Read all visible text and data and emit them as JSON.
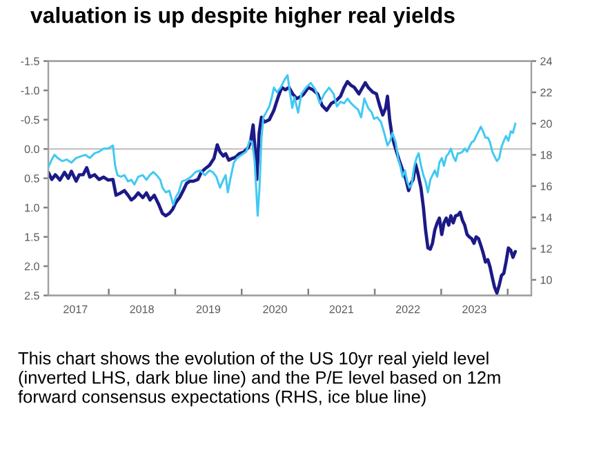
{
  "chart_data": {
    "type": "line",
    "title": "valuation is up despite higher real yields",
    "annotations": [
      "This chart shows the evolution of the US 10yr real yield level (inverted LHS, dark blue line) and the P/E level based on 12m forward consensus expectations (RHS, ice blue line)"
    ],
    "xlim": [
      "2017-02-03",
      "2024-05-10"
    ],
    "xticks": [
      {
        "value": "2017-07-02",
        "label": "2017"
      },
      {
        "value": "2018-01-01",
        "label": null
      },
      {
        "value": "2018-07-02",
        "label": "2018"
      },
      {
        "value": "2019-01-01",
        "label": null
      },
      {
        "value": "2019-07-02",
        "label": "2019"
      },
      {
        "value": "2020-01-01",
        "label": null
      },
      {
        "value": "2020-07-02",
        "label": "2020"
      },
      {
        "value": "2021-01-01",
        "label": null
      },
      {
        "value": "2021-07-02",
        "label": "2021"
      },
      {
        "value": "2022-01-01",
        "label": null
      },
      {
        "value": "2022-07-02",
        "label": "2022"
      },
      {
        "value": "2023-01-01",
        "label": null
      },
      {
        "value": "2023-07-02",
        "label": "2023"
      },
      {
        "value": "2024-01-01",
        "label": null
      }
    ],
    "ylim": [
      2.5,
      -1.5
    ],
    "yticks": [
      -1.5,
      {
        "value": -1,
        "label": "-1.0"
      },
      -0.5,
      {
        "value": 0,
        "label": "0.0"
      },
      0.5,
      {
        "value": 1,
        "label": "1.0"
      },
      1.5,
      {
        "value": 2,
        "label": "2.0"
      },
      2.5
    ],
    "y2lim": [
      9,
      24
    ],
    "y2ticks": [
      10,
      12,
      14,
      16,
      18,
      20,
      22,
      24
    ],
    "ref_lines": [
      {
        "axis": "y",
        "value": 0,
        "color": "#c4c4c4"
      }
    ],
    "series": [
      {
        "color": "#1c1a86",
        "x": [
          "2017-02-03",
          "2017-02-22",
          "2017-03-14",
          "2017-04-08",
          "2017-05-03",
          "2017-05-24",
          "2017-06-10",
          "2017-07-06",
          "2017-07-23",
          "2017-08-13",
          "2017-09-02",
          "2017-09-19",
          "2017-10-15",
          "2017-11-09",
          "2017-12-04",
          "2017-12-29",
          "2018-01-24",
          "2018-02-10",
          "2018-03-08",
          "2018-03-28",
          "2018-04-17",
          "2018-05-05",
          "2018-05-22",
          "2018-06-12",
          "2018-07-07",
          "2018-07-27",
          "2018-08-16",
          "2018-09-08",
          "2018-10-03",
          "2018-10-23",
          "2018-11-10",
          "2018-11-30",
          "2018-12-18",
          "2019-01-05",
          "2019-01-25",
          "2019-02-14",
          "2019-03-04",
          "2019-03-22",
          "2019-04-11",
          "2019-05-06",
          "2019-05-24",
          "2019-06-13",
          "2019-07-08",
          "2019-08-02",
          "2019-08-20",
          "2019-09-04",
          "2019-09-22",
          "2019-10-05",
          "2019-10-22",
          "2019-11-11",
          "2019-11-29",
          "2019-12-19",
          "2020-01-13",
          "2020-02-08",
          "2020-02-20",
          "2020-03-04",
          "2020-03-17",
          "2020-03-24",
          "2020-04-06",
          "2020-04-19",
          "2020-05-06",
          "2020-06-01",
          "2020-06-26",
          "2020-07-21",
          "2020-08-08",
          "2020-08-28",
          "2020-09-17",
          "2020-10-07",
          "2020-10-30",
          "2020-11-24",
          "2020-12-07",
          "2021-01-01",
          "2021-01-26",
          "2021-02-21",
          "2021-03-18",
          "2021-04-12",
          "2021-05-08",
          "2021-06-02",
          "2021-06-27",
          "2021-07-17",
          "2021-08-04",
          "2021-08-22",
          "2021-09-11",
          "2021-10-06",
          "2021-10-26",
          "2021-11-10",
          "2021-11-26",
          "2021-12-21",
          "2022-01-10",
          "2022-01-28",
          "2022-02-14",
          "2022-03-02",
          "2022-03-12",
          "2022-03-24",
          "2022-04-06",
          "2022-04-19",
          "2022-05-04",
          "2022-05-16",
          "2022-06-03",
          "2022-06-21",
          "2022-07-06",
          "2022-07-19",
          "2022-07-31",
          "2022-08-13",
          "2022-08-25",
          "2022-09-12",
          "2022-09-25",
          "2022-10-07",
          "2022-10-20",
          "2022-11-02",
          "2022-11-14",
          "2022-11-27",
          "2022-12-10",
          "2022-12-22",
          "2023-01-04",
          "2023-01-16",
          "2023-01-29",
          "2023-02-11",
          "2023-02-23",
          "2023-03-08",
          "2023-03-21",
          "2023-04-02",
          "2023-04-15",
          "2023-04-28",
          "2023-05-10",
          "2023-05-23",
          "2023-06-04",
          "2023-06-17",
          "2023-06-30",
          "2023-07-12",
          "2023-07-25",
          "2023-08-07",
          "2023-08-19",
          "2023-09-01",
          "2023-09-14",
          "2023-09-26",
          "2023-10-09",
          "2023-10-21",
          "2023-11-03",
          "2023-11-16",
          "2023-11-28",
          "2023-12-11",
          "2023-12-23",
          "2024-01-05",
          "2024-01-18",
          "2024-01-30",
          "2024-02-12"
        ],
        "values": [
          0.4,
          0.52,
          0.44,
          0.53,
          0.4,
          0.5,
          0.38,
          0.55,
          0.44,
          0.44,
          0.32,
          0.48,
          0.44,
          0.52,
          0.48,
          0.53,
          0.52,
          0.79,
          0.75,
          0.71,
          0.79,
          0.87,
          0.83,
          0.75,
          0.83,
          0.75,
          0.87,
          0.79,
          0.95,
          1.1,
          1.14,
          1.1,
          1.03,
          0.91,
          0.83,
          0.71,
          0.59,
          0.55,
          0.55,
          0.52,
          0.4,
          0.34,
          0.28,
          0.16,
          -0.07,
          0.05,
          0.12,
          0.08,
          0.19,
          0.16,
          0.14,
          0.08,
          0.05,
          -0.03,
          -0.15,
          -0.41,
          0.12,
          0.52,
          -0.27,
          -0.54,
          -0.46,
          -0.5,
          -0.66,
          -0.9,
          -1.05,
          -1.01,
          -1.05,
          -0.94,
          -0.86,
          -0.9,
          -0.94,
          -1.05,
          -1.01,
          -0.94,
          -0.74,
          -0.66,
          -0.78,
          -0.82,
          -0.9,
          -1.05,
          -1.15,
          -1.09,
          -1.05,
          -0.94,
          -1.05,
          -1.13,
          -1.05,
          -0.97,
          -0.94,
          -0.74,
          -0.58,
          -0.7,
          -0.9,
          -0.5,
          -0.23,
          -0.07,
          0.08,
          0.2,
          0.36,
          0.52,
          0.71,
          0.59,
          0.52,
          0.26,
          0.4,
          0.67,
          0.99,
          1.38,
          1.69,
          1.71,
          1.61,
          1.38,
          1.26,
          1.18,
          1.46,
          1.26,
          1.18,
          1.3,
          1.14,
          1.26,
          1.14,
          1.13,
          1.08,
          1.22,
          1.3,
          1.46,
          1.5,
          1.53,
          1.61,
          1.5,
          1.53,
          1.65,
          1.77,
          1.93,
          1.89,
          2.01,
          2.2,
          2.36,
          2.46,
          2.32,
          2.16,
          2.12,
          1.93,
          1.69,
          1.73,
          1.85,
          1.75
        ]
      },
      {
        "color": "#42c9f2",
        "axis": "y2",
        "x": [
          "2017-02-03",
          "2017-02-22",
          "2017-03-09",
          "2017-03-26",
          "2017-04-21",
          "2017-05-16",
          "2017-06-10",
          "2017-07-06",
          "2017-07-31",
          "2017-08-25",
          "2017-09-19",
          "2017-10-15",
          "2017-11-09",
          "2017-12-04",
          "2017-12-29",
          "2018-01-24",
          "2018-02-05",
          "2018-02-18",
          "2018-03-08",
          "2018-03-28",
          "2018-04-17",
          "2018-05-05",
          "2018-05-22",
          "2018-06-12",
          "2018-07-07",
          "2018-07-27",
          "2018-08-14",
          "2018-09-03",
          "2018-09-21",
          "2018-10-11",
          "2018-10-23",
          "2018-11-10",
          "2018-11-30",
          "2018-12-21",
          "2019-01-05",
          "2019-01-20",
          "2019-02-07",
          "2019-03-04",
          "2019-03-29",
          "2019-04-23",
          "2019-05-19",
          "2019-06-13",
          "2019-07-08",
          "2019-07-26",
          "2019-08-15",
          "2019-09-04",
          "2019-09-22",
          "2019-10-05",
          "2019-10-17",
          "2019-10-30",
          "2019-11-19",
          "2019-12-07",
          "2020-01-01",
          "2020-01-26",
          "2020-02-13",
          "2020-02-28",
          "2020-03-12",
          "2020-03-22",
          "2020-03-29",
          "2020-04-08",
          "2020-04-19",
          "2020-04-29",
          "2020-05-14",
          "2020-06-01",
          "2020-06-13",
          "2020-06-26",
          "2020-07-13",
          "2020-08-02",
          "2020-08-23",
          "2020-09-09",
          "2020-09-22",
          "2020-10-05",
          "2020-10-17",
          "2020-11-06",
          "2020-11-24",
          "2020-12-19",
          "2021-01-14",
          "2021-02-08",
          "2021-03-05",
          "2021-03-30",
          "2021-04-25",
          "2021-05-20",
          "2021-06-07",
          "2021-06-27",
          "2021-07-17",
          "2021-08-04",
          "2021-08-24",
          "2021-09-11",
          "2021-10-01",
          "2021-10-18",
          "2021-11-05",
          "2021-11-26",
          "2021-12-16",
          "2021-12-28",
          "2022-01-15",
          "2022-02-04",
          "2022-02-22",
          "2022-03-12",
          "2022-03-27",
          "2022-04-08",
          "2022-04-26",
          "2022-05-09",
          "2022-05-21",
          "2022-06-03",
          "2022-06-16",
          "2022-06-28",
          "2022-07-11",
          "2022-07-23",
          "2022-08-05",
          "2022-08-18",
          "2022-08-30",
          "2022-09-12",
          "2022-09-25",
          "2022-10-07",
          "2022-10-20",
          "2022-11-02",
          "2022-11-14",
          "2022-11-27",
          "2022-12-10",
          "2022-12-22",
          "2023-01-04",
          "2023-01-16",
          "2023-01-29",
          "2023-02-11",
          "2023-02-23",
          "2023-03-08",
          "2023-03-21",
          "2023-04-02",
          "2023-04-15",
          "2023-04-28",
          "2023-05-10",
          "2023-05-23",
          "2023-06-04",
          "2023-06-17",
          "2023-06-30",
          "2023-07-12",
          "2023-07-25",
          "2023-08-07",
          "2023-08-19",
          "2023-09-01",
          "2023-09-14",
          "2023-09-26",
          "2023-10-09",
          "2023-10-21",
          "2023-11-03",
          "2023-11-16",
          "2023-11-28",
          "2023-12-11",
          "2023-12-23",
          "2024-01-05",
          "2024-01-18",
          "2024-01-30",
          "2024-02-12"
        ],
        "values": [
          17.2,
          17.7,
          18.0,
          17.8,
          17.6,
          17.7,
          17.5,
          17.8,
          17.9,
          18.0,
          17.8,
          18.1,
          18.2,
          18.4,
          18.4,
          18.6,
          17.3,
          16.7,
          16.6,
          16.7,
          16.3,
          16.4,
          16.1,
          16.6,
          16.7,
          16.4,
          16.7,
          16.9,
          16.7,
          16.4,
          15.9,
          15.6,
          15.7,
          14.8,
          15.3,
          15.6,
          16.3,
          16.4,
          16.6,
          16.9,
          17.0,
          16.7,
          17.0,
          16.9,
          16.6,
          15.9,
          16.4,
          16.7,
          15.6,
          16.4,
          17.5,
          17.8,
          18.0,
          18.2,
          18.9,
          18.8,
          17.6,
          15.6,
          14.1,
          15.9,
          19.1,
          20.4,
          20.7,
          21.1,
          21.6,
          22.3,
          22.0,
          22.3,
          22.8,
          23.1,
          22.0,
          21.0,
          21.7,
          20.7,
          21.9,
          22.3,
          22.6,
          22.2,
          21.3,
          21.9,
          22.3,
          21.9,
          21.1,
          21.4,
          21.3,
          21.6,
          21.3,
          21.1,
          20.9,
          20.4,
          21.6,
          21.0,
          20.7,
          20.3,
          20.4,
          20.1,
          19.4,
          18.6,
          18.9,
          19.4,
          18.8,
          17.8,
          17.3,
          16.6,
          17.0,
          16.3,
          15.9,
          16.1,
          17.2,
          17.8,
          18.1,
          17.3,
          16.7,
          16.3,
          15.6,
          16.4,
          16.7,
          17.0,
          16.6,
          17.5,
          17.8,
          17.3,
          17.9,
          18.1,
          18.4,
          17.9,
          17.6,
          18.1,
          18.1,
          18.2,
          18.4,
          18.2,
          18.5,
          18.8,
          18.9,
          19.2,
          19.5,
          19.8,
          19.5,
          19.1,
          19.1,
          18.8,
          18.2,
          17.9,
          17.6,
          17.8,
          18.5,
          18.9,
          19.2,
          18.9,
          19.5,
          19.4,
          20.0
        ]
      }
    ]
  }
}
